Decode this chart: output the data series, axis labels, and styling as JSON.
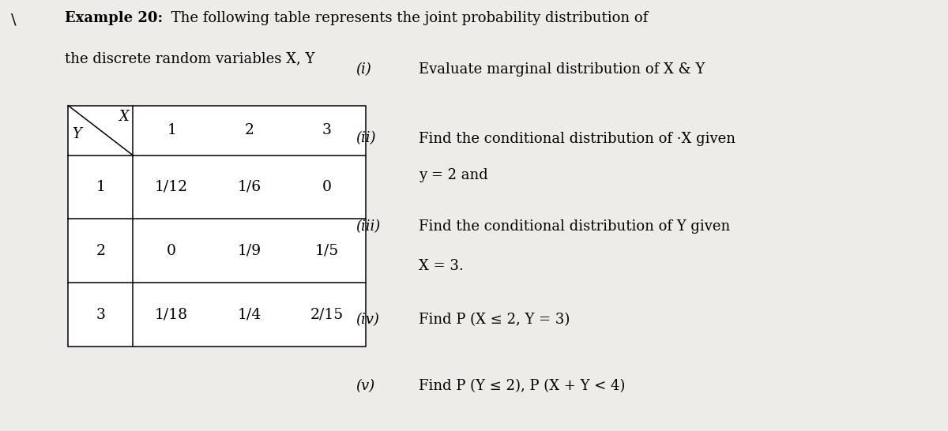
{
  "bg_color": "#eeece8",
  "title_bold": "Example 20:",
  "title_rest": " The following table represents the joint probability distribution of",
  "title_line2": "the discrete random variables X, Y",
  "backslash": "\\",
  "table": {
    "x_values": [
      "1",
      "2",
      "3"
    ],
    "y_values": [
      "1",
      "2",
      "3"
    ],
    "data": [
      [
        "1/12",
        "1/6",
        "0"
      ],
      [
        "0",
        "1/9",
        "1/5"
      ],
      [
        "1/18",
        "1/4",
        "2/15"
      ]
    ]
  },
  "questions": [
    {
      "label": "(i)",
      "line1": "Evaluate marginal distribution of X & Y",
      "line2": ""
    },
    {
      "label": "(ii)",
      "line1": "Find the conditional distribution of ·X given",
      "line2": "y = 2 and"
    },
    {
      "label": "(iii)",
      "line1": "Find the conditional distribution of Y given",
      "line2": "X = 3."
    },
    {
      "label": "(iv)",
      "line1": "Find P (X ≤ 2, Y = 3)",
      "line2": ""
    },
    {
      "label": "(v)",
      "line1": "Find P (Y ≤ 2), P (X + Y < 4)",
      "line2": ""
    }
  ],
  "ff": "DejaVu Serif",
  "fs_title": 13.0,
  "fs_table": 13.5,
  "fs_q": 13.0
}
